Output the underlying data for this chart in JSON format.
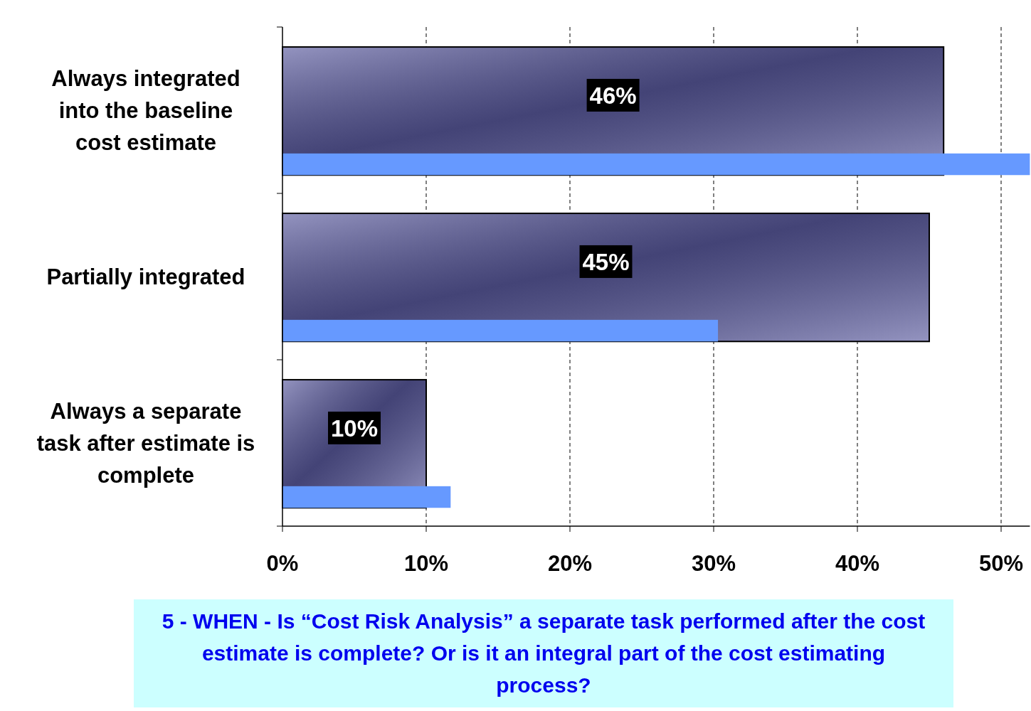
{
  "chart_data": {
    "type": "bar",
    "orientation": "horizontal",
    "title": "5 - WHEN - Is “Cost Risk Analysis” a separate task performed after the cost estimate is complete?  Or is it an integral part of the cost estimating process?",
    "categories": [
      "Always integrated into the baseline cost estimate",
      "Partially integrated",
      "Always a separate task after estimate is complete"
    ],
    "series": [
      {
        "color": "#5a5a9e",
        "values": [
          46,
          45,
          10
        ],
        "value_labels": [
          "46%",
          "45%",
          "10%"
        ]
      },
      {
        "color": "#6699ff",
        "values": [
          52,
          30.3,
          11.7
        ]
      }
    ],
    "xlim": [
      0,
      52
    ],
    "xticks": [
      {
        "value": 0,
        "label": "0%"
      },
      {
        "value": 10,
        "label": "10%"
      },
      {
        "value": 20,
        "label": "20%"
      },
      {
        "value": 30,
        "label": "30%"
      },
      {
        "value": 40,
        "label": "40%"
      },
      {
        "value": 50,
        "label": "50%"
      }
    ],
    "grid": "x"
  }
}
